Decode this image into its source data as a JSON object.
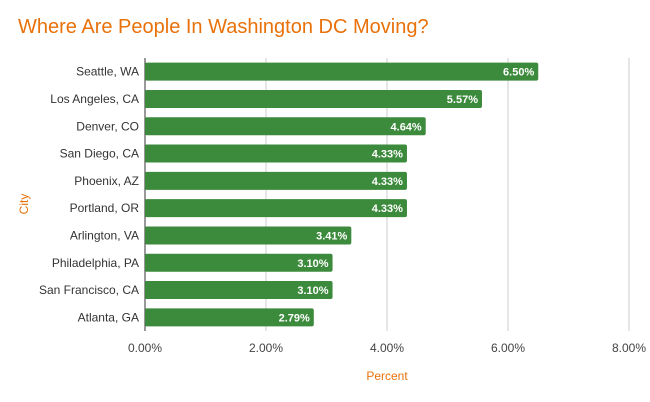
{
  "chart_data": {
    "type": "bar",
    "orientation": "horizontal",
    "title": "Where Are People In Washington DC Moving?",
    "xlabel": "Percent",
    "ylabel": "City",
    "categories": [
      "Seattle, WA",
      "Los Angeles, CA",
      "Denver, CO",
      "San Diego, CA",
      "Phoenix, AZ",
      "Portland, OR",
      "Arlington, VA",
      "Philadelphia, PA",
      "San Francisco, CA",
      "Atlanta, GA"
    ],
    "values": [
      6.5,
      5.57,
      4.64,
      4.33,
      4.33,
      4.33,
      3.41,
      3.1,
      3.1,
      2.79
    ],
    "data_labels": [
      "6.50%",
      "5.57%",
      "4.64%",
      "4.33%",
      "4.33%",
      "4.33%",
      "3.41%",
      "3.10%",
      "3.10%",
      "2.79%"
    ],
    "xlim": [
      0,
      8
    ],
    "x_ticks": [
      0,
      2,
      4,
      6,
      8
    ],
    "x_tick_labels": [
      "0.00%",
      "2.00%",
      "4.00%",
      "6.00%",
      "8.00%"
    ],
    "grid": true,
    "legend": "none",
    "colors": {
      "bar": "#3c8a3c",
      "title": "#e8710a",
      "grid": "#cccccc"
    }
  }
}
